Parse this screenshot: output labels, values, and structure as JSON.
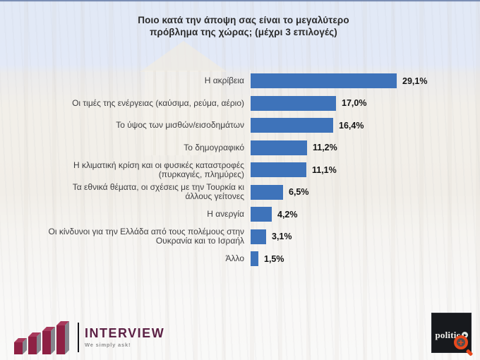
{
  "chart_data": {
    "type": "bar",
    "orientation": "horizontal",
    "title": "Ποιο κατά την άποψη σας είναι το μεγαλύτερο πρόβλημα της χώρας; (μέχρι 3 επιλογές)",
    "categories": [
      "Η ακρίβεια",
      "Οι τιμές της ενέργειας (καύσιμα, ρεύμα, αέριο)",
      "Το ύψος των μισθών/εισοδημάτων",
      "Το δημογραφικό",
      "Η κλιματική κρίση και οι φυσικές καταστροφές (πυρκαγιές, πλημύρες)",
      "Τα εθνικά θέματα, οι σχέσεις με την Τουρκία κι άλλους γείτονες",
      "Η ανεργία",
      "Οι κίνδυνοι για την Ελλάδα από τους πολέμους στην Ουκρανία και το Ισραήλ",
      "Άλλο"
    ],
    "values": [
      29.1,
      17.0,
      16.4,
      11.2,
      11.1,
      6.5,
      4.2,
      3.1,
      1.5
    ],
    "value_labels": [
      "29,1%",
      "17,0%",
      "16,4%",
      "11,2%",
      "11,1%",
      "6,5%",
      "4,2%",
      "3,1%",
      "1,5%"
    ],
    "bar_color": "#3e73ba",
    "xlim": [
      0,
      32
    ],
    "grid": false,
    "legend": false,
    "background": "faded photo of the Greek Parliament building"
  },
  "footer": {
    "interview": {
      "name": "INTERVIEW",
      "tagline": "We simply ask!",
      "icon": "bar-chart-3d-icon",
      "brand_color": "#5c2145"
    },
    "politic": {
      "text": "politic",
      "icon": "politic-circle-icon",
      "overlay_icon": "zoom-in-magnifier-icon",
      "bg_color": "#17191d",
      "accent_color": "#e8491d"
    }
  }
}
